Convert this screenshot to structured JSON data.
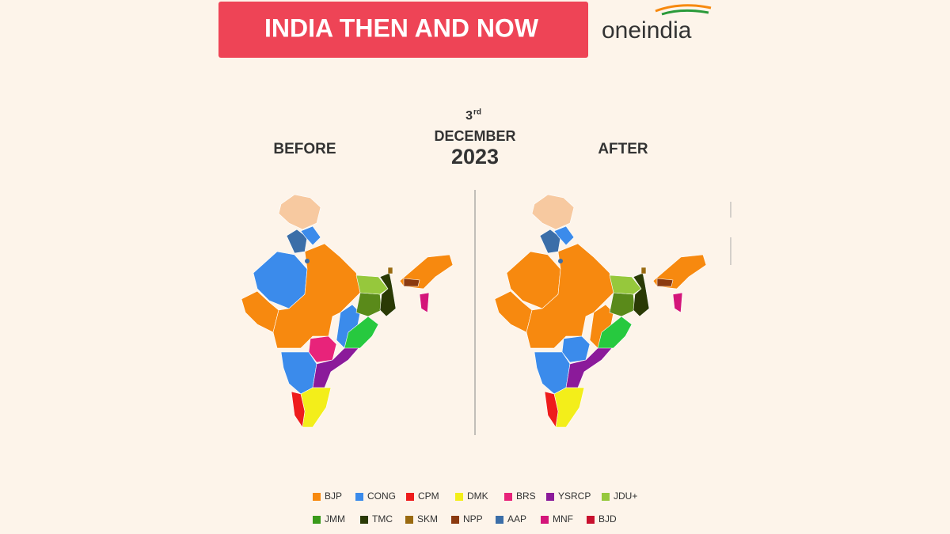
{
  "header": {
    "title": "INDIA THEN AND NOW",
    "logo": "oneindia"
  },
  "date": {
    "day": "3",
    "suffix": "rd",
    "month": "DECEMBER",
    "year": "2023"
  },
  "panels": {
    "before": "BEFORE",
    "after": "AFTER"
  },
  "legend": {
    "rows": [
      [
        {
          "label": "BJP",
          "color": "#f7890f"
        },
        {
          "label": "CONG",
          "color": "#3b8beb"
        },
        {
          "label": "CPM",
          "color": "#ee1c1c"
        },
        {
          "label": "DMK",
          "color": "#f3ee1a"
        },
        {
          "label": "BRS",
          "color": "#e8237a"
        },
        {
          "label": "YSRCP",
          "color": "#8b1a9a"
        },
        {
          "label": "JDU+",
          "color": "#96c83c"
        }
      ],
      [
        {
          "label": "JMM",
          "color": "#3a9a1a"
        },
        {
          "label": "TMC",
          "color": "#2a3a05"
        },
        {
          "label": "SKM",
          "color": "#9a6a10"
        },
        {
          "label": "NPP",
          "color": "#8b3a10"
        },
        {
          "label": "AAP",
          "color": "#3b6ea8"
        },
        {
          "label": "MNF",
          "color": "#d4157a"
        },
        {
          "label": "BJD",
          "color": "#c8102e"
        }
      ]
    ]
  }
}
